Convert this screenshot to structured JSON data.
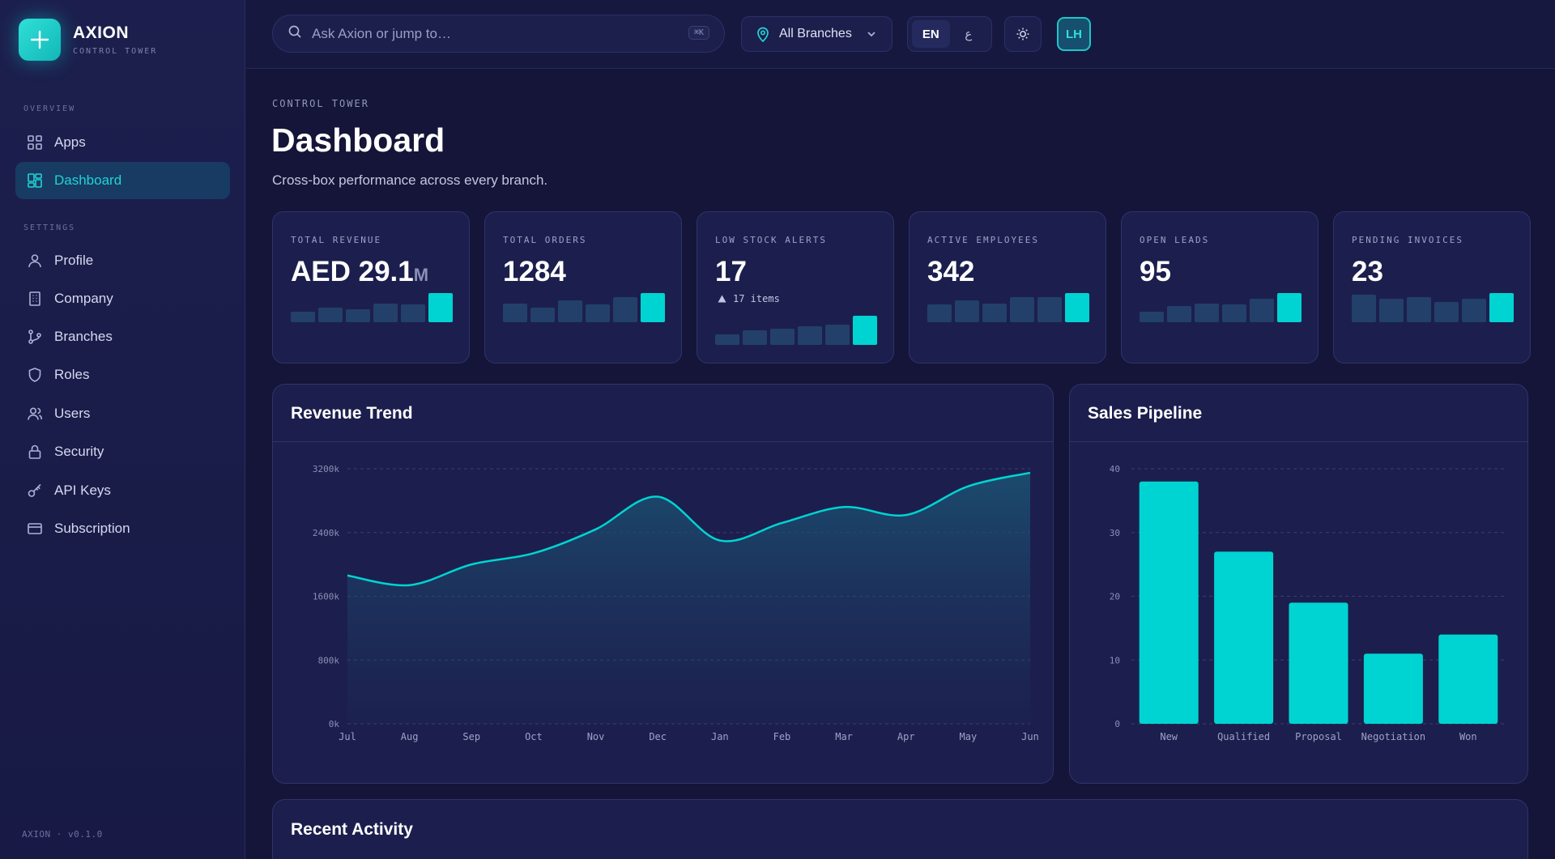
{
  "brand": {
    "name": "AXION",
    "subtitle": "CONTROL TOWER",
    "version": "AXION · v0.1.0"
  },
  "sidebar": {
    "sections": [
      {
        "label": "OVERVIEW"
      },
      {
        "label": "SETTINGS"
      }
    ],
    "items": [
      {
        "label": "Apps",
        "icon": "grid-icon",
        "active": false
      },
      {
        "label": "Dashboard",
        "icon": "dashboard-icon",
        "active": true
      },
      {
        "label": "Profile",
        "icon": "user-icon",
        "active": false
      },
      {
        "label": "Company",
        "icon": "building-icon",
        "active": false
      },
      {
        "label": "Branches",
        "icon": "branches-icon",
        "active": false
      },
      {
        "label": "Roles",
        "icon": "shield-icon",
        "active": false
      },
      {
        "label": "Users",
        "icon": "users-icon",
        "active": false
      },
      {
        "label": "Security",
        "icon": "lock-icon",
        "active": false
      },
      {
        "label": "API Keys",
        "icon": "key-icon",
        "active": false
      },
      {
        "label": "Subscription",
        "icon": "credit-card-icon",
        "active": false
      }
    ]
  },
  "topbar": {
    "search_placeholder": "Ask Axion or jump to…",
    "search_shortcut": "⌘K",
    "branch_select": "All Branches",
    "languages": [
      "EN",
      "ع"
    ],
    "active_language": "EN",
    "avatar_initials": "LH"
  },
  "header": {
    "eyebrow": "CONTROL TOWER",
    "title": "Dashboard",
    "subtitle": "Cross-box performance across every branch."
  },
  "kpis": [
    {
      "label": "TOTAL REVENUE",
      "value": "AED 29.1",
      "unit": "M",
      "spark": [
        0.35,
        0.5,
        0.45,
        0.65,
        0.6,
        1.0
      ]
    },
    {
      "label": "TOTAL ORDERS",
      "value": "1284",
      "unit": "",
      "spark": [
        0.65,
        0.5,
        0.75,
        0.6,
        0.85,
        1.0
      ]
    },
    {
      "label": "LOW STOCK ALERTS",
      "value": "17",
      "unit": "",
      "note": "17 items",
      "spark": [
        0.35,
        0.5,
        0.55,
        0.65,
        0.7,
        1.0
      ]
    },
    {
      "label": "ACTIVE EMPLOYEES",
      "value": "342",
      "unit": "",
      "spark": [
        0.6,
        0.75,
        0.65,
        0.85,
        0.85,
        1.0
      ]
    },
    {
      "label": "OPEN LEADS",
      "value": "95",
      "unit": "",
      "spark": [
        0.35,
        0.55,
        0.65,
        0.6,
        0.8,
        1.0
      ]
    },
    {
      "label": "PENDING INVOICES",
      "value": "23",
      "unit": "",
      "spark": [
        0.95,
        0.8,
        0.85,
        0.7,
        0.8,
        1.0
      ]
    }
  ],
  "colors": {
    "accent": "#00d4d2",
    "muted_bar": "#23406a",
    "grid": "#3a3e70"
  },
  "chart_data": [
    {
      "type": "area",
      "title": "Revenue Trend",
      "categories": [
        "Jul",
        "Aug",
        "Sep",
        "Oct",
        "Nov",
        "Dec",
        "Jan",
        "Feb",
        "Mar",
        "Apr",
        "May",
        "Jun"
      ],
      "values": [
        1860,
        1740,
        2000,
        2140,
        2440,
        2850,
        2300,
        2520,
        2720,
        2620,
        2980,
        3150
      ],
      "y_ticks": [
        "0k",
        "800k",
        "1600k",
        "2400k",
        "3200k"
      ],
      "ylim": [
        0,
        3200
      ],
      "grid": true
    },
    {
      "type": "bar",
      "title": "Sales Pipeline",
      "categories": [
        "New",
        "Qualified",
        "Proposal",
        "Negotiation",
        "Won"
      ],
      "values": [
        38,
        27,
        19,
        11,
        14
      ],
      "y_ticks": [
        "0",
        "10",
        "20",
        "30",
        "40"
      ],
      "ylim": [
        0,
        40
      ],
      "grid": true
    }
  ],
  "recent_activity": {
    "title": "Recent Activity"
  }
}
